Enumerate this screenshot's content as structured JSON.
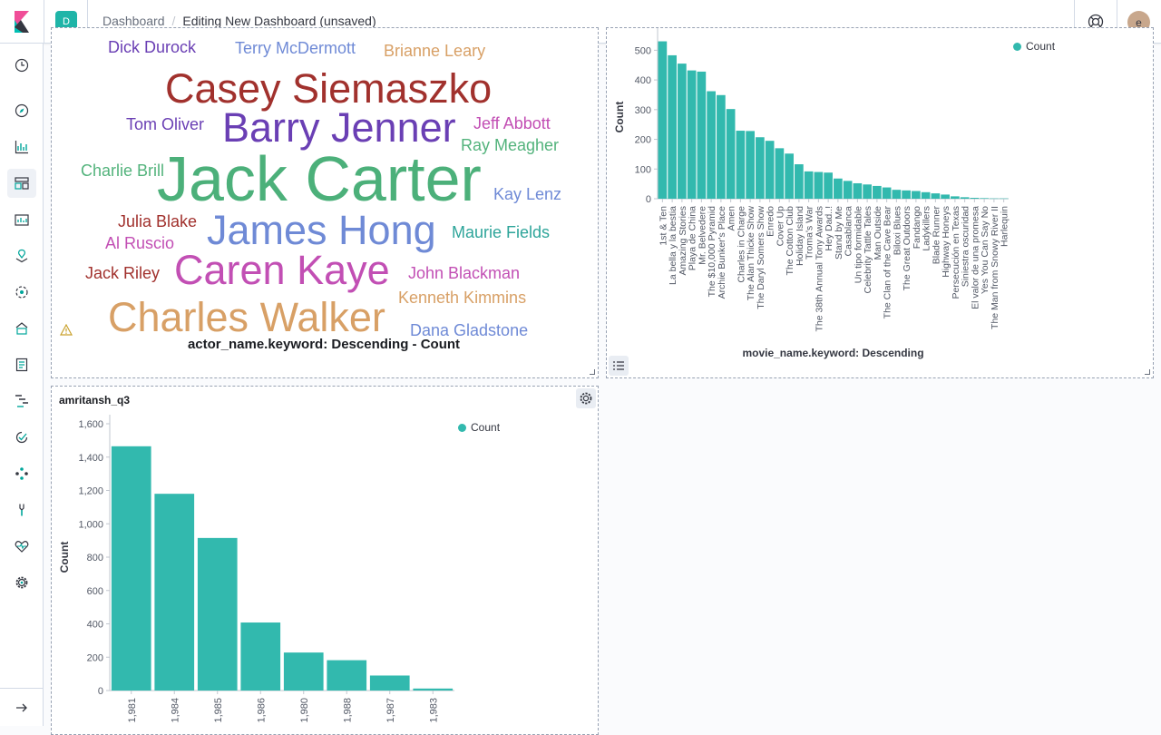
{
  "header": {
    "space_initial": "D",
    "breadcrumbs": [
      "Dashboard",
      "Editing New Dashboard (unsaved)"
    ],
    "user_initial": "e"
  },
  "sidenav": {
    "items": [
      "recently-viewed-icon",
      "discover-icon",
      "visualize-icon",
      "dashboard-icon",
      "canvas-icon",
      "maps-icon",
      "machine-learning-icon",
      "infrastructure-icon",
      "logs-icon",
      "apm-icon",
      "uptime-icon",
      "graph-icon",
      "dev-tools-icon",
      "monitoring-icon",
      "management-icon"
    ],
    "active": "dashboard-icon",
    "dock_icon": "arrow-right-icon"
  },
  "word_cloud": {
    "title": "actor_name.keyword: Descending - Count",
    "words": [
      {
        "text": "Dick Durock",
        "color": "#6a3fb4"
      },
      {
        "text": "Terry McDermott",
        "color": "#6f8ad6"
      },
      {
        "text": "Brianne Leary",
        "color": "#d8a066"
      },
      {
        "text": "Casey Siemaszko",
        "color": "#a1312d"
      },
      {
        "text": "Tom Oliver",
        "color": "#6a3fb4"
      },
      {
        "text": "Barry Jenner",
        "color": "#6a3fb4"
      },
      {
        "text": "Jeff Abbott",
        "color": "#c24fb4"
      },
      {
        "text": "Ray Meagher",
        "color": "#53b37c"
      },
      {
        "text": "Charlie Brill",
        "color": "#53b37c"
      },
      {
        "text": "Jack Carter",
        "color": "#4cb07a"
      },
      {
        "text": "Kay Lenz",
        "color": "#6f8ad6"
      },
      {
        "text": "Julia Blake",
        "color": "#a1312d"
      },
      {
        "text": "James Hong",
        "color": "#6f8ad6"
      },
      {
        "text": "Maurie Fields",
        "color": "#2ea59a"
      },
      {
        "text": "Al Ruscio",
        "color": "#c24fb4"
      },
      {
        "text": "Jack Riley",
        "color": "#a1312d"
      },
      {
        "text": "Caren Kaye",
        "color": "#c24fb4"
      },
      {
        "text": "John Blackman",
        "color": "#c24fb4"
      },
      {
        "text": "Kenneth Kimmins",
        "color": "#d8a066"
      },
      {
        "text": "Charles Walker",
        "color": "#d8a066"
      },
      {
        "text": "Dana Gladstone",
        "color": "#6f8ad6"
      }
    ]
  },
  "movie_chart": {
    "legend_label": "Count",
    "bar_color": "#32b9ae"
  },
  "q3_panel": {
    "title": "amritansh_q3",
    "legend_label": "Count"
  },
  "chart_data": [
    {
      "type": "bar",
      "title": "",
      "xlabel": "movie_name.keyword: Descending",
      "ylabel": "Count",
      "ylim": [
        0,
        550
      ],
      "yticks": [
        0,
        100,
        200,
        300,
        400,
        500
      ],
      "categories": [
        "1st & Ten",
        "La bella y la bestia",
        "Amazing Stories",
        "Playa de China",
        "Mr. Belvedere",
        "The $10,000 Pyramid",
        "Archie Bunker's Place",
        "Amen",
        "Charles in Charge",
        "The Alan Thicke Show",
        "The Daryl Somers Show",
        "Enredo",
        "Cover Up",
        "The Cotton Club",
        "Holiday Island",
        "Troma's War",
        "The 38th Annual Tony Awards",
        "Hey Dad..!",
        "Stand by Me",
        "Casablanca",
        "Un tipo formidable",
        "Celebrity Tattle Tales",
        "Man Outside",
        "The Clan of the Cave Bear",
        "Biloxi Blues",
        "The Great Outdoors",
        "Fandango",
        "Ladykillers",
        "Blade Runner",
        "Highway Honeys",
        "Persecución en Texas",
        "Siniestra oscuridad",
        "El valor de una promesa",
        "Yes You Can Say No",
        "The Man from Snowy River II",
        "Harlequin"
      ],
      "series": [
        {
          "name": "Count",
          "values": [
            530,
            483,
            455,
            432,
            428,
            362,
            349,
            302,
            229,
            228,
            207,
            195,
            170,
            152,
            116,
            92,
            90,
            88,
            68,
            60,
            52,
            48,
            43,
            38,
            30,
            28,
            26,
            22,
            18,
            14,
            8,
            5,
            3,
            2,
            1,
            1
          ]
        }
      ],
      "legend": "top-right",
      "grid": false
    },
    {
      "type": "bar",
      "title": "",
      "xlabel": "",
      "ylabel": "Count",
      "ylim": [
        0,
        1600
      ],
      "yticks": [
        0,
        200,
        400,
        600,
        800,
        1000,
        1200,
        1400,
        1600
      ],
      "ytick_labels": [
        "0",
        "200",
        "400",
        "600",
        "800",
        "1,000",
        "1,200",
        "1,400",
        "1,600"
      ],
      "categories": [
        "1,981",
        "1,984",
        "1,985",
        "1,986",
        "1,980",
        "1,988",
        "1,987",
        "1,983"
      ],
      "series": [
        {
          "name": "Count",
          "values": [
            1465,
            1180,
            915,
            408,
            228,
            182,
            90,
            12
          ]
        }
      ],
      "legend": "top-right",
      "grid": false
    }
  ]
}
